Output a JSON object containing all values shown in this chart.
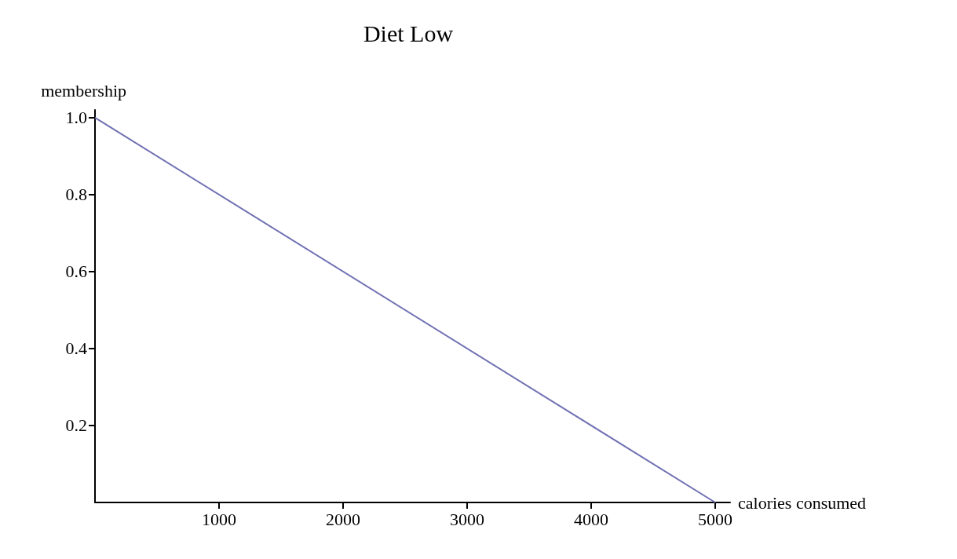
{
  "chart_data": {
    "type": "line",
    "title": "Diet Low",
    "xlabel": "calories consumed",
    "ylabel": "membership",
    "x": [
      0,
      5000
    ],
    "series": [
      {
        "color": "#7070b4",
        "values": [
          1.0,
          0.0
        ]
      }
    ],
    "xlim": [
      0,
      5120
    ],
    "ylim": [
      0,
      1.02
    ],
    "xticks": [
      1000,
      2000,
      3000,
      4000,
      5000
    ],
    "yticks": [
      0.2,
      0.4,
      0.6,
      0.8,
      {
        "value": 1,
        "label": "1.0"
      }
    ],
    "grid": false
  }
}
